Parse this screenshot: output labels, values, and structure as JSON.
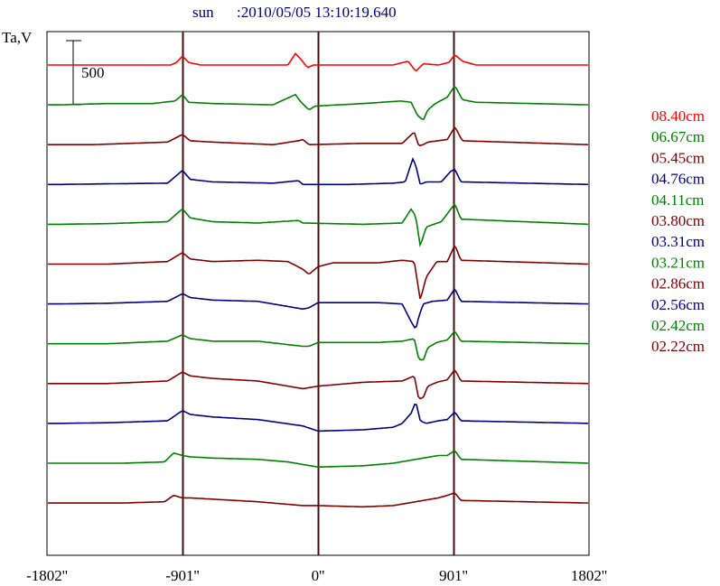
{
  "header": {
    "object": "sun",
    "timestamp": ":2010/05/05 13:10:19.640"
  },
  "chart_data": {
    "type": "line",
    "title": "sun     :2010/05/05 13:10:19.640",
    "ylabel": "Ta,V",
    "xlabel": "",
    "scale_bar_label": "500",
    "scale_bar_value": 500,
    "xlim": [
      -1802,
      1802
    ],
    "x_ticks": [
      {
        "value": -1802,
        "label": "-1802''"
      },
      {
        "value": -901,
        "label": "-901''"
      },
      {
        "value": 0,
        "label": "0''"
      },
      {
        "value": 901,
        "label": "901''"
      },
      {
        "value": 1802,
        "label": "1802''"
      }
    ],
    "vertical_markers": [
      -901,
      0,
      901
    ],
    "grid": false,
    "legend_position": "right",
    "series": [
      {
        "name": "08.40cm",
        "color": "#ff0000",
        "features": [
          [
            -1720,
            0
          ],
          [
            -1500,
            0
          ],
          [
            -980,
            0
          ],
          [
            -940,
            -20
          ],
          [
            -901,
            -70
          ],
          [
            -860,
            -20
          ],
          [
            -820,
            -10
          ],
          [
            -780,
            0
          ],
          [
            -200,
            0
          ],
          [
            -150,
            -90
          ],
          [
            -110,
            -40
          ],
          [
            -70,
            20
          ],
          [
            -30,
            0
          ],
          [
            500,
            0
          ],
          [
            600,
            -30
          ],
          [
            650,
            50
          ],
          [
            700,
            -10
          ],
          [
            800,
            0
          ],
          [
            870,
            -20
          ],
          [
            910,
            -80
          ],
          [
            960,
            -30
          ],
          [
            1050,
            0
          ],
          [
            1800,
            0
          ]
        ]
      },
      {
        "name": "06.67cm",
        "color": "#008000",
        "features": [
          [
            -1720,
            0
          ],
          [
            -1400,
            -10
          ],
          [
            -1100,
            -10
          ],
          [
            -950,
            -30
          ],
          [
            -901,
            -80
          ],
          [
            -860,
            -20
          ],
          [
            -700,
            -10
          ],
          [
            -300,
            0
          ],
          [
            -150,
            -80
          ],
          [
            -120,
            -30
          ],
          [
            -60,
            40
          ],
          [
            -20,
            10
          ],
          [
            300,
            -10
          ],
          [
            550,
            -30
          ],
          [
            620,
            -20
          ],
          [
            660,
            80
          ],
          [
            700,
            120
          ],
          [
            730,
            40
          ],
          [
            780,
            -10
          ],
          [
            860,
            -60
          ],
          [
            910,
            -150
          ],
          [
            960,
            -40
          ],
          [
            1050,
            -20
          ],
          [
            1800,
            0
          ]
        ]
      },
      {
        "name": "05.45cm",
        "color": "#800000",
        "features": [
          [
            -1720,
            0
          ],
          [
            -1500,
            0
          ],
          [
            -1000,
            -20
          ],
          [
            -901,
            -80
          ],
          [
            -850,
            -30
          ],
          [
            -700,
            -20
          ],
          [
            -300,
            0
          ],
          [
            -130,
            -30
          ],
          [
            -100,
            -40
          ],
          [
            -60,
            0
          ],
          [
            300,
            -10
          ],
          [
            560,
            -10
          ],
          [
            640,
            -100
          ],
          [
            670,
            10
          ],
          [
            700,
            0
          ],
          [
            730,
            -20
          ],
          [
            860,
            -40
          ],
          [
            910,
            -140
          ],
          [
            960,
            -30
          ],
          [
            1800,
            0
          ]
        ]
      },
      {
        "name": "04.76cm",
        "color": "#000080",
        "features": [
          [
            -1720,
            0
          ],
          [
            -1400,
            -5
          ],
          [
            -1000,
            -10
          ],
          [
            -901,
            -110
          ],
          [
            -850,
            -40
          ],
          [
            -700,
            -20
          ],
          [
            -300,
            -10
          ],
          [
            -130,
            -30
          ],
          [
            -100,
            0
          ],
          [
            200,
            0
          ],
          [
            500,
            -10
          ],
          [
            580,
            -20
          ],
          [
            630,
            -200
          ],
          [
            650,
            -150
          ],
          [
            680,
            0
          ],
          [
            720,
            -20
          ],
          [
            820,
            -20
          ],
          [
            880,
            -100
          ],
          [
            910,
            -120
          ],
          [
            950,
            -20
          ],
          [
            1800,
            0
          ]
        ]
      },
      {
        "name": "04.11cm",
        "color": "#008000",
        "features": [
          [
            -1720,
            0
          ],
          [
            -1400,
            -5
          ],
          [
            -1000,
            -20
          ],
          [
            -901,
            -120
          ],
          [
            -850,
            -50
          ],
          [
            -700,
            -20
          ],
          [
            -400,
            -10
          ],
          [
            -130,
            -30
          ],
          [
            -100,
            -10
          ],
          [
            300,
            0
          ],
          [
            560,
            -10
          ],
          [
            620,
            -120
          ],
          [
            650,
            -60
          ],
          [
            680,
            170
          ],
          [
            720,
            20
          ],
          [
            820,
            -20
          ],
          [
            910,
            -160
          ],
          [
            950,
            -40
          ],
          [
            1800,
            0
          ]
        ]
      },
      {
        "name": "03.80cm",
        "color": "#800000",
        "features": [
          [
            -1720,
            0
          ],
          [
            -1400,
            0
          ],
          [
            -1000,
            -20
          ],
          [
            -901,
            -90
          ],
          [
            -850,
            -40
          ],
          [
            -700,
            -20
          ],
          [
            -400,
            -30
          ],
          [
            -200,
            -20
          ],
          [
            -100,
            40
          ],
          [
            -60,
            80
          ],
          [
            0,
            20
          ],
          [
            100,
            -10
          ],
          [
            400,
            -10
          ],
          [
            560,
            -30
          ],
          [
            640,
            -20
          ],
          [
            680,
            280
          ],
          [
            720,
            100
          ],
          [
            790,
            -20
          ],
          [
            860,
            -20
          ],
          [
            910,
            -150
          ],
          [
            950,
            -30
          ],
          [
            1800,
            0
          ]
        ]
      },
      {
        "name": "03.31cm",
        "color": "#000080",
        "features": [
          [
            -1720,
            0
          ],
          [
            -1400,
            -5
          ],
          [
            -1000,
            -20
          ],
          [
            -901,
            -80
          ],
          [
            -850,
            -50
          ],
          [
            -700,
            -30
          ],
          [
            -400,
            -20
          ],
          [
            -100,
            40
          ],
          [
            -60,
            30
          ],
          [
            0,
            -10
          ],
          [
            400,
            -10
          ],
          [
            560,
            0
          ],
          [
            620,
            140
          ],
          [
            650,
            200
          ],
          [
            670,
            100
          ],
          [
            700,
            0
          ],
          [
            760,
            -20
          ],
          [
            860,
            -30
          ],
          [
            910,
            -120
          ],
          [
            950,
            -20
          ],
          [
            1800,
            0
          ]
        ]
      },
      {
        "name": "03.21cm",
        "color": "#008000",
        "features": [
          [
            -1720,
            0
          ],
          [
            -1400,
            0
          ],
          [
            -1000,
            -20
          ],
          [
            -901,
            -70
          ],
          [
            -850,
            -40
          ],
          [
            -700,
            -20
          ],
          [
            -400,
            -20
          ],
          [
            -100,
            20
          ],
          [
            -60,
            20
          ],
          [
            0,
            -10
          ],
          [
            400,
            -10
          ],
          [
            560,
            -20
          ],
          [
            640,
            -40
          ],
          [
            670,
            120
          ],
          [
            700,
            130
          ],
          [
            730,
            30
          ],
          [
            790,
            -10
          ],
          [
            860,
            -30
          ],
          [
            910,
            -100
          ],
          [
            950,
            -20
          ],
          [
            1800,
            0
          ]
        ]
      },
      {
        "name": "02.86cm",
        "color": "#800000",
        "features": [
          [
            -1720,
            0
          ],
          [
            -1400,
            0
          ],
          [
            -1000,
            -20
          ],
          [
            -901,
            -90
          ],
          [
            -850,
            -60
          ],
          [
            -700,
            -40
          ],
          [
            -400,
            -20
          ],
          [
            -100,
            40
          ],
          [
            0,
            20
          ],
          [
            300,
            -10
          ],
          [
            560,
            -20
          ],
          [
            640,
            -60
          ],
          [
            670,
            120
          ],
          [
            700,
            110
          ],
          [
            730,
            20
          ],
          [
            790,
            -10
          ],
          [
            860,
            -30
          ],
          [
            910,
            -110
          ],
          [
            950,
            -20
          ],
          [
            1800,
            0
          ]
        ]
      },
      {
        "name": "02.56cm",
        "color": "#000080",
        "features": [
          [
            -1720,
            0
          ],
          [
            -1400,
            -5
          ],
          [
            -1000,
            -20
          ],
          [
            -901,
            -100
          ],
          [
            -850,
            -70
          ],
          [
            -700,
            -50
          ],
          [
            -400,
            -30
          ],
          [
            -100,
            20
          ],
          [
            0,
            60
          ],
          [
            300,
            50
          ],
          [
            500,
            30
          ],
          [
            560,
            0
          ],
          [
            620,
            -80
          ],
          [
            650,
            -170
          ],
          [
            680,
            -20
          ],
          [
            720,
            0
          ],
          [
            800,
            -20
          ],
          [
            860,
            -30
          ],
          [
            910,
            -90
          ],
          [
            950,
            -20
          ],
          [
            1800,
            0
          ]
        ]
      },
      {
        "name": "02.42cm",
        "color": "#008000",
        "features": [
          [
            -1720,
            0
          ],
          [
            -1300,
            0
          ],
          [
            -1020,
            -10
          ],
          [
            -960,
            -80
          ],
          [
            -901,
            -60
          ],
          [
            -850,
            -50
          ],
          [
            -700,
            -40
          ],
          [
            -400,
            -30
          ],
          [
            -200,
            -10
          ],
          [
            0,
            30
          ],
          [
            300,
            20
          ],
          [
            500,
            0
          ],
          [
            650,
            -30
          ],
          [
            800,
            -60
          ],
          [
            860,
            -60
          ],
          [
            910,
            -100
          ],
          [
            950,
            -30
          ],
          [
            1800,
            0
          ]
        ]
      },
      {
        "name": "02.22cm",
        "color": "#800000",
        "features": [
          [
            -1720,
            0
          ],
          [
            -1300,
            0
          ],
          [
            -1020,
            -10
          ],
          [
            -960,
            -60
          ],
          [
            -901,
            -40
          ],
          [
            -850,
            -40
          ],
          [
            -700,
            -30
          ],
          [
            -400,
            -10
          ],
          [
            -100,
            20
          ],
          [
            0,
            20
          ],
          [
            300,
            30
          ],
          [
            500,
            20
          ],
          [
            650,
            -10
          ],
          [
            800,
            -40
          ],
          [
            860,
            -60
          ],
          [
            910,
            -80
          ],
          [
            950,
            -20
          ],
          [
            1800,
            0
          ]
        ]
      }
    ]
  }
}
